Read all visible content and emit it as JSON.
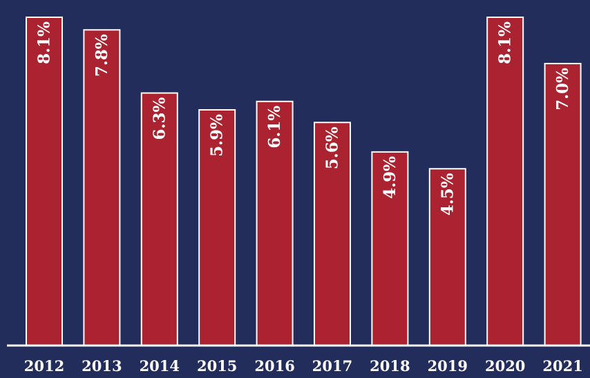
{
  "colors": {
    "background": "#232d5c",
    "bar_fill": "#ab2330",
    "bar_stroke": "#ffffff",
    "text": "#ffffff"
  },
  "chart_data": {
    "type": "bar",
    "title": "",
    "xlabel": "",
    "ylabel": "",
    "categories": [
      "2012",
      "2013",
      "2014",
      "2015",
      "2016",
      "2017",
      "2018",
      "2019",
      "2020",
      "2021"
    ],
    "values": [
      8.1,
      7.8,
      6.3,
      5.9,
      6.1,
      5.6,
      4.9,
      4.5,
      8.1,
      7.0
    ],
    "value_labels": [
      "8.1%",
      "7.8%",
      "6.3%",
      "5.9%",
      "6.1%",
      "5.6%",
      "4.9%",
      "4.5%",
      "8.1%",
      "7.0%"
    ],
    "ylim": [
      0,
      9
    ],
    "grid": false,
    "legend": "none"
  }
}
